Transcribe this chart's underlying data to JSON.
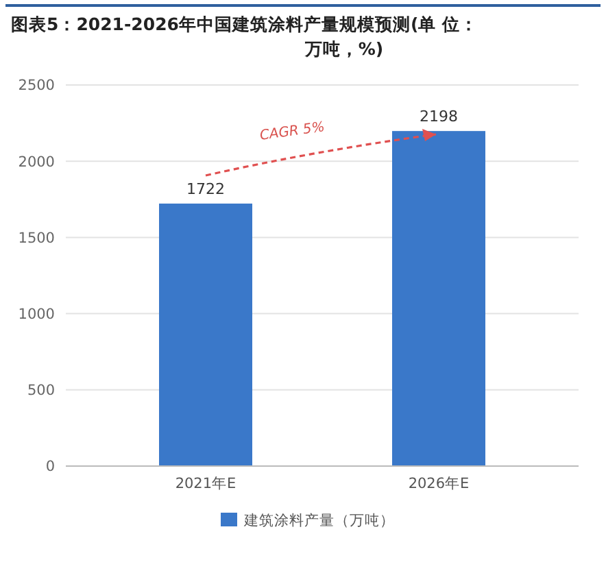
{
  "chart_data": {
    "type": "bar",
    "title": "图表5：2021-2026年中国建筑涂料产量规模预测(单 位：万吨，%)",
    "categories": [
      "2021年E",
      "2026年E"
    ],
    "series": [
      {
        "name": "建筑涂料产量（万吨）",
        "color": "#3a78c9",
        "values": [
          1722,
          2198
        ]
      }
    ],
    "ylim": [
      0,
      2500
    ],
    "yticks": [
      0,
      500,
      1000,
      1500,
      2000,
      2500
    ],
    "grid": "y",
    "legend": "bottom",
    "data_labels": true,
    "annotations": [
      "CAGR 5%"
    ]
  }
}
